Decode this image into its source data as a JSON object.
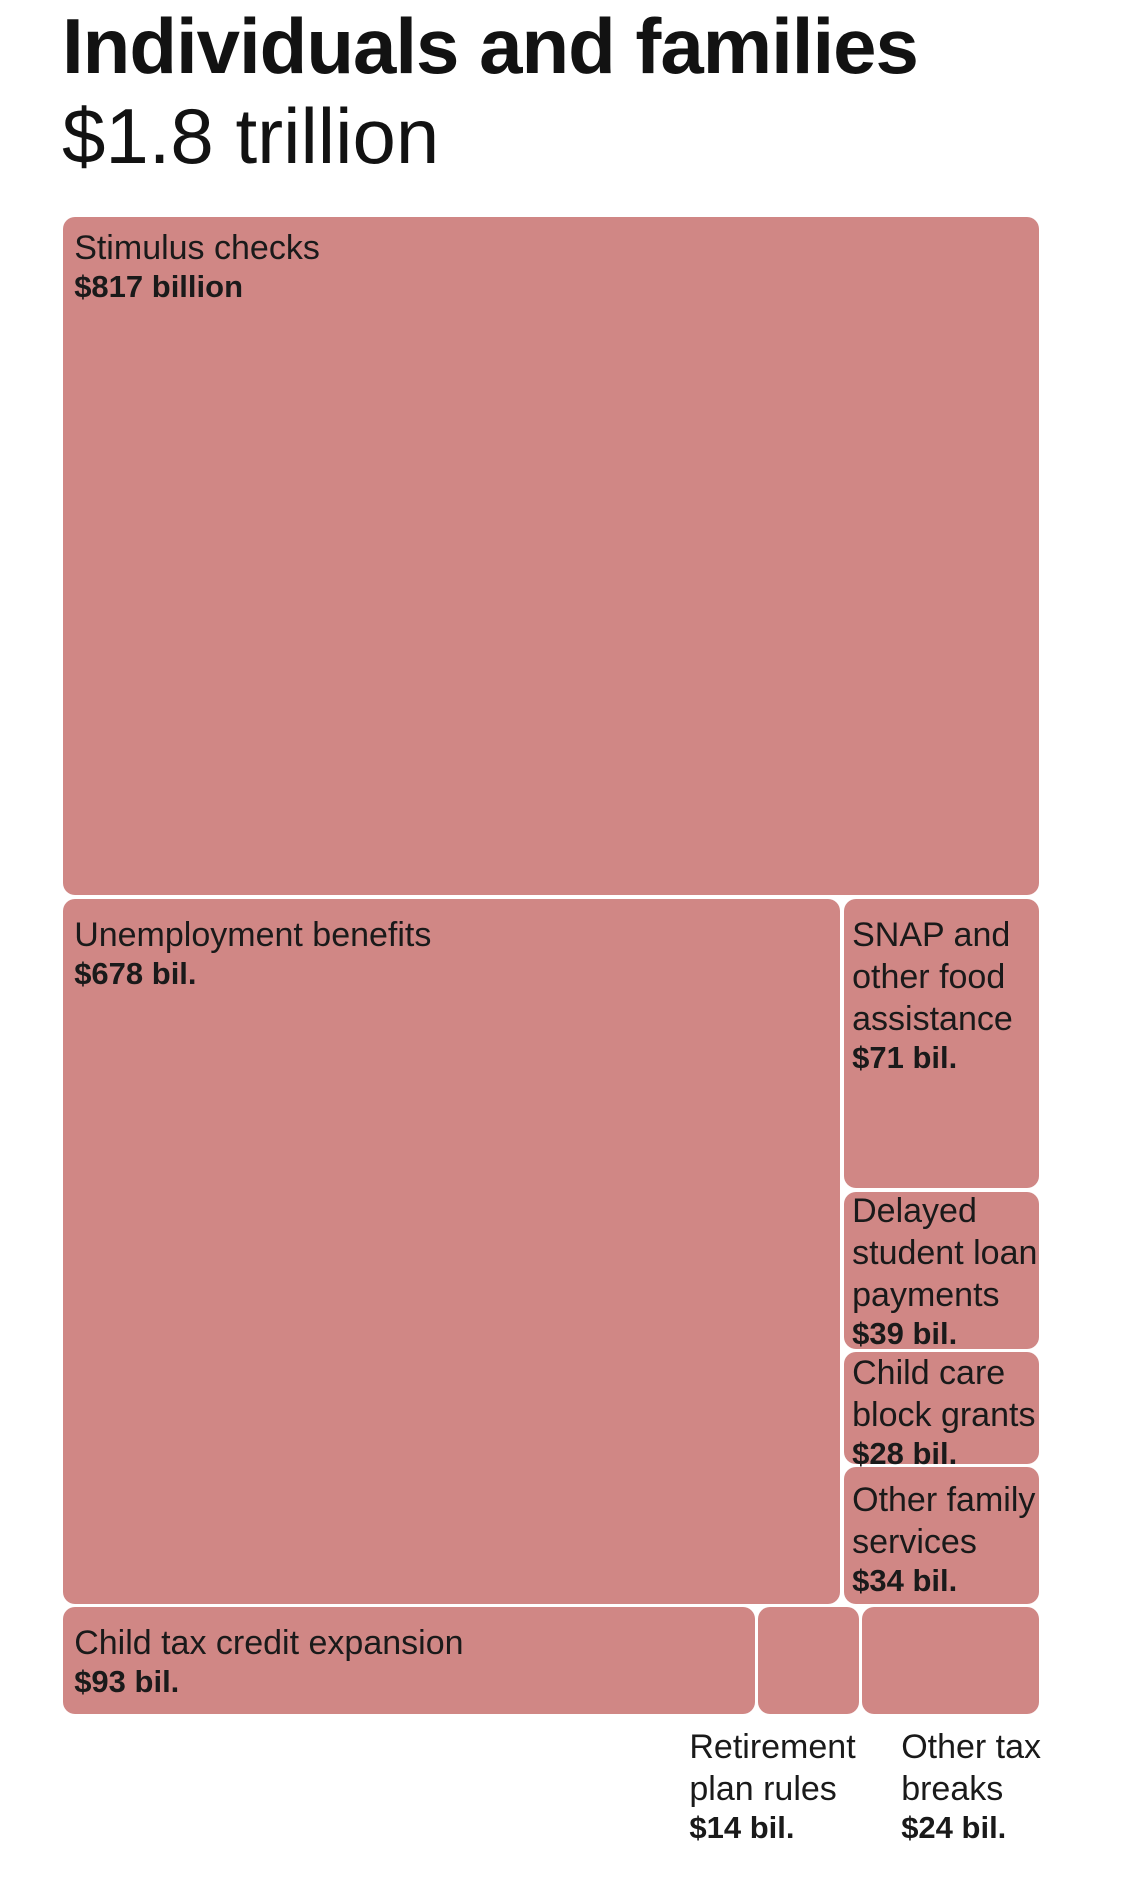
{
  "header": {
    "title": "Individuals and families",
    "total": "$1.8 trillion"
  },
  "colors": {
    "tile": "#d08785",
    "background": "#ffffff",
    "text": "#121212"
  },
  "chart_data": {
    "type": "treemap",
    "title": "Individuals and families",
    "subtitle": "$1.8 trillion",
    "unit": "billion USD",
    "items": [
      {
        "id": "stimulus",
        "name": "Stimulus checks",
        "value": 817,
        "value_label": "$817 billion"
      },
      {
        "id": "unemployment",
        "name": "Unemployment benefits",
        "value": 678,
        "value_label": "$678 bil."
      },
      {
        "id": "snap",
        "name": "SNAP and other food assistance",
        "value": 71,
        "value_label": "$71 bil."
      },
      {
        "id": "student_loans",
        "name": "Delayed student loan payments",
        "value": 39,
        "value_label": "$39 bil."
      },
      {
        "id": "child_care",
        "name": "Child care block grants",
        "value": 28,
        "value_label": "$28 bil."
      },
      {
        "id": "family_services",
        "name": "Other family services",
        "value": 34,
        "value_label": "$34 bil."
      },
      {
        "id": "child_tax_credit",
        "name": "Child tax credit expansion",
        "value": 93,
        "value_label": "$93 bil."
      },
      {
        "id": "retirement",
        "name": "Retirement plan rules",
        "value": 14,
        "value_label": "$14 bil."
      },
      {
        "id": "other_tax",
        "name": "Other tax breaks",
        "value": 24,
        "value_label": "$24 bil."
      }
    ]
  }
}
